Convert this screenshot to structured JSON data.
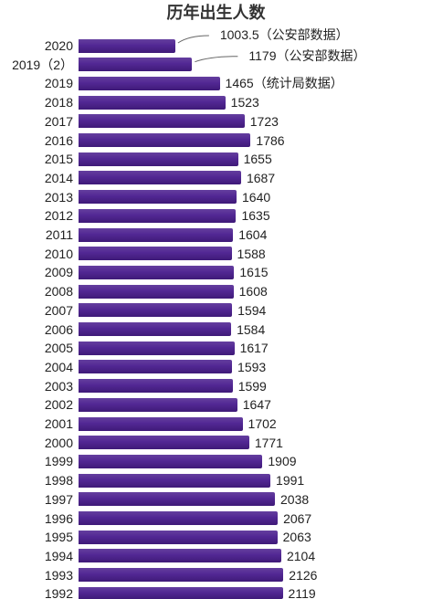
{
  "chart_data": {
    "type": "bar",
    "orientation": "horizontal",
    "title": "历年出生人数",
    "categories": [
      "2020",
      "2019（2）",
      "2019",
      "2018",
      "2017",
      "2016",
      "2015",
      "2014",
      "2013",
      "2012",
      "2011",
      "2010",
      "2009",
      "2008",
      "2007",
      "2006",
      "2005",
      "2004",
      "2003",
      "2002",
      "2001",
      "2000",
      "1999",
      "1998",
      "1997",
      "1996",
      "1995",
      "1994",
      "1993",
      "1992"
    ],
    "values": [
      1003.5,
      1179,
      1465,
      1523,
      1723,
      1786,
      1655,
      1687,
      1640,
      1635,
      1604,
      1588,
      1615,
      1608,
      1594,
      1584,
      1617,
      1593,
      1599,
      1647,
      1702,
      1771,
      1909,
      1991,
      2038,
      2067,
      2063,
      2104,
      2126,
      2119
    ],
    "data_labels": [
      "1003.5（公安部数据）",
      "1179（公安部数据）",
      "1465（统计局数据）",
      "1523",
      "1723",
      "1786",
      "1655",
      "1687",
      "1640",
      "1635",
      "1604",
      "1588",
      "1615",
      "1608",
      "1594",
      "1584",
      "1617",
      "1593",
      "1599",
      "1647",
      "1702",
      "1771",
      "1909",
      "1991",
      "2038",
      "2067",
      "2063",
      "2104",
      "2126",
      "2119"
    ],
    "xlabel": "",
    "ylabel": "",
    "grid": false,
    "legend": false,
    "colors": {
      "bar": "#4b1f8f",
      "text": "#222222",
      "title": "#333333",
      "leader": "#666666"
    }
  }
}
